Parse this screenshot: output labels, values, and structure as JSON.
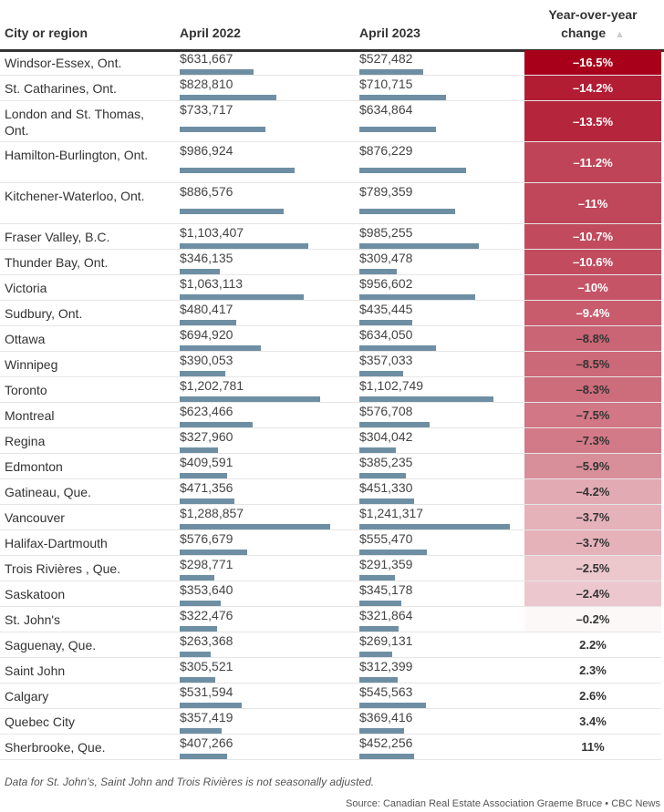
{
  "chart_data": {
    "type": "table",
    "columns": [
      "City or region",
      "April 2022",
      "April 2023",
      "Year-over-year change"
    ],
    "sort_indicator": "▲",
    "accent_color": "#a8001a",
    "rows": [
      {
        "name": "Windsor-Essex, Ont.",
        "v2022": 631667,
        "v2023": 527482,
        "change": -16.5
      },
      {
        "name": "St. Catharines, Ont.",
        "v2022": 828810,
        "v2023": 710715,
        "change": -14.2
      },
      {
        "name": "London and St. Thomas, Ont.",
        "v2022": 733717,
        "v2023": 634864,
        "change": -13.5
      },
      {
        "name": "Hamilton-Burlington, Ont.",
        "v2022": 986924,
        "v2023": 876229,
        "change": -11.2
      },
      {
        "name": "Kitchener-Waterloo, Ont.",
        "v2022": 886576,
        "v2023": 789359,
        "change": -11
      },
      {
        "name": "Fraser Valley, B.C.",
        "v2022": 1103407,
        "v2023": 985255,
        "change": -10.7
      },
      {
        "name": "Thunder Bay, Ont.",
        "v2022": 346135,
        "v2023": 309478,
        "change": -10.6
      },
      {
        "name": "Victoria",
        "v2022": 1063113,
        "v2023": 956602,
        "change": -10
      },
      {
        "name": "Sudbury, Ont.",
        "v2022": 480417,
        "v2023": 435445,
        "change": -9.4
      },
      {
        "name": "Ottawa",
        "v2022": 694920,
        "v2023": 634050,
        "change": -8.8
      },
      {
        "name": "Winnipeg",
        "v2022": 390053,
        "v2023": 357033,
        "change": -8.5
      },
      {
        "name": "Toronto",
        "v2022": 1202781,
        "v2023": 1102749,
        "change": -8.3
      },
      {
        "name": "Montreal",
        "v2022": 623466,
        "v2023": 576708,
        "change": -7.5
      },
      {
        "name": "Regina",
        "v2022": 327960,
        "v2023": 304042,
        "change": -7.3
      },
      {
        "name": "Edmonton",
        "v2022": 409591,
        "v2023": 385235,
        "change": -5.9
      },
      {
        "name": "Gatineau, Que.",
        "v2022": 471356,
        "v2023": 451330,
        "change": -4.2
      },
      {
        "name": "Vancouver",
        "v2022": 1288857,
        "v2023": 1241317,
        "change": -3.7
      },
      {
        "name": "Halifax-Dartmouth",
        "v2022": 576679,
        "v2023": 555470,
        "change": -3.7
      },
      {
        "name": "Trois Rivières , Que.",
        "v2022": 298771,
        "v2023": 291359,
        "change": -2.5
      },
      {
        "name": "Saskatoon",
        "v2022": 353640,
        "v2023": 345178,
        "change": -2.4
      },
      {
        "name": "St. John's",
        "v2022": 322476,
        "v2023": 321864,
        "change": -0.2
      },
      {
        "name": "Saguenay, Que.",
        "v2022": 263368,
        "v2023": 269131,
        "change": 2.2
      },
      {
        "name": "Saint John",
        "v2022": 305521,
        "v2023": 312399,
        "change": 2.3
      },
      {
        "name": "Calgary",
        "v2022": 531594,
        "v2023": 545563,
        "change": 2.6
      },
      {
        "name": "Quebec City",
        "v2022": 357419,
        "v2023": 369416,
        "change": 3.4
      },
      {
        "name": "Sherbrooke, Que.",
        "v2022": 407266,
        "v2023": 452256,
        "change": 11
      }
    ]
  },
  "header": {
    "col1": "City or region",
    "col2": "April 2022",
    "col3": "April 2023",
    "col4a": "Year-over-year",
    "col4b": "change",
    "sort": "▲"
  },
  "footer": {
    "note": "Data for St. John’s, Saint John and Trois Rivières is not seasonally adjusted.",
    "source": "Source: Canadian Real Estate Association Graeme Bruce • CBC News"
  }
}
